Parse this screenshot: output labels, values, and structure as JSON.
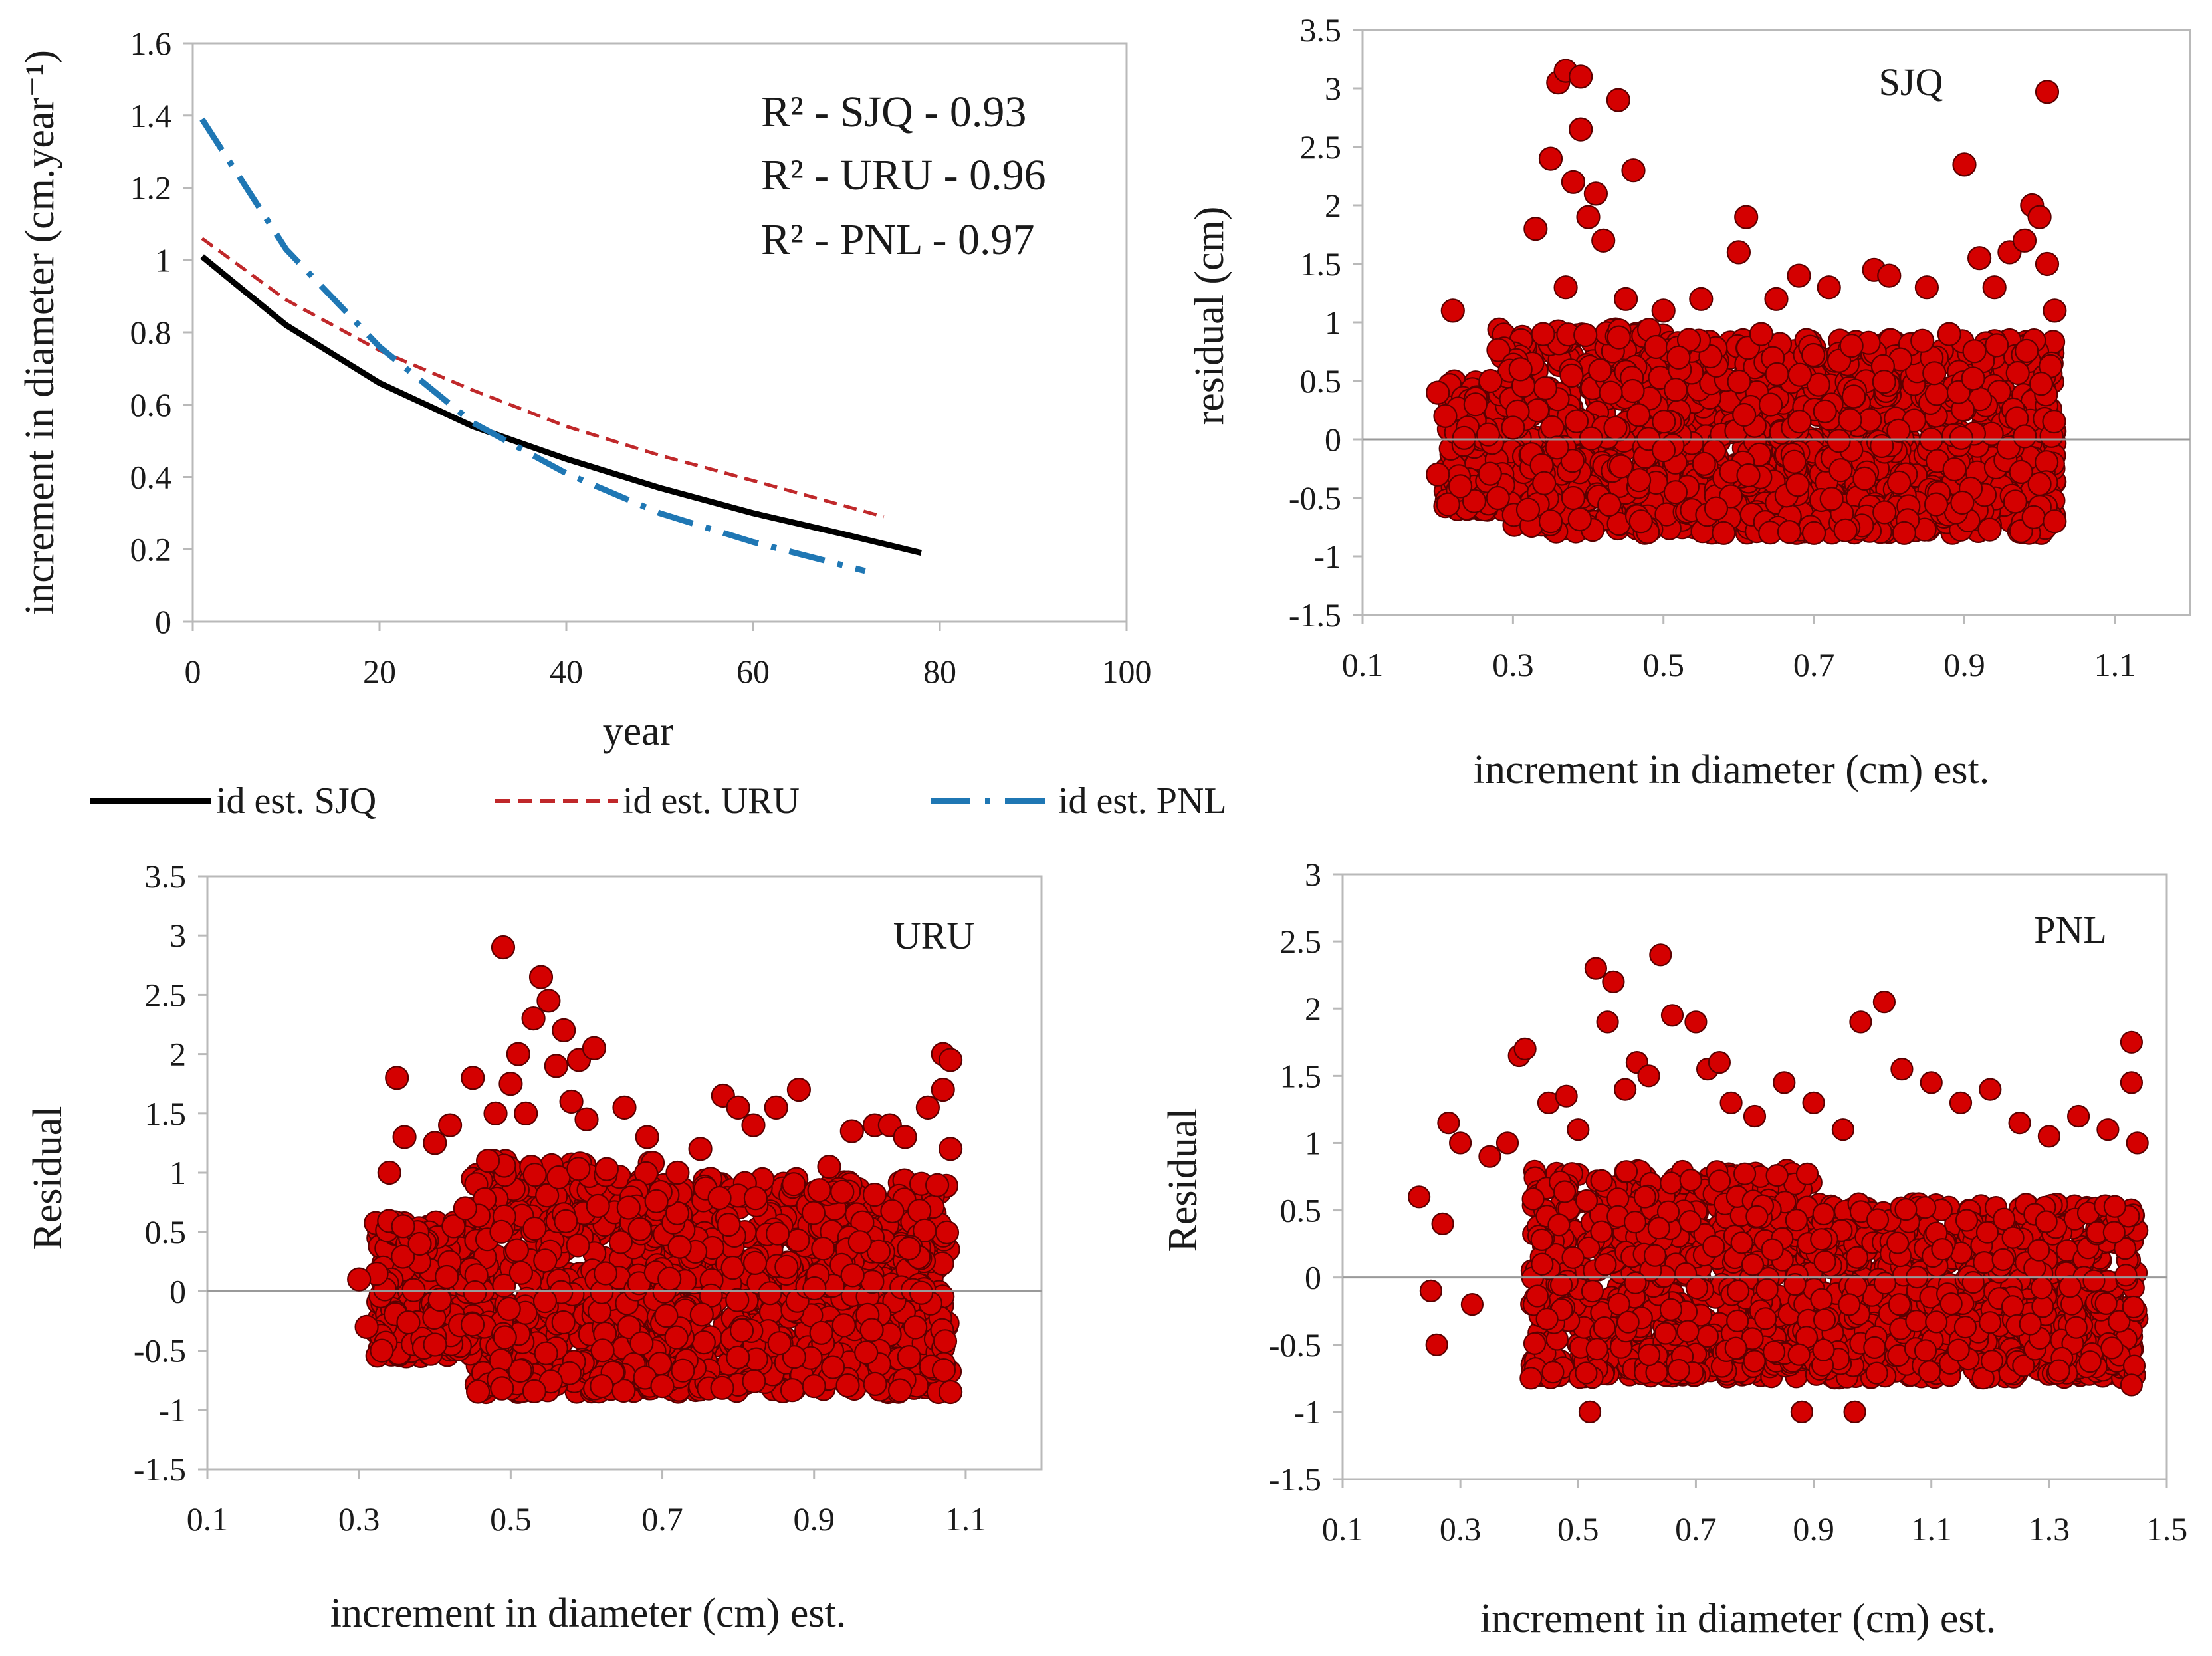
{
  "colors": {
    "sjq_line": "#000000",
    "uru_line": "#c0282a",
    "pnl_line": "#1f77b4",
    "residual_point_fill": "#d40000",
    "residual_point_edge": "#5a0000"
  },
  "chart_data": [
    {
      "id": "curves",
      "type": "line",
      "xlabel": "year",
      "ylabel": "increment in diameter (cm.year⁻¹)",
      "xlim": [
        0,
        100
      ],
      "ylim": [
        0,
        1.6
      ],
      "xticks": [
        "0",
        "20",
        "40",
        "60",
        "80",
        "100"
      ],
      "yticks": [
        "0",
        "0.2",
        "0.4",
        "0.6",
        "0.8",
        "1",
        "1.2",
        "1.4",
        "1.6"
      ],
      "annotations": [
        "R² - SJQ - 0.93",
        "R² - URU - 0.96",
        "R² - PNL - 0.97"
      ],
      "legend": {
        "position": "below",
        "entries": [
          "id est. SJQ",
          "id est. URU",
          "id est. PNL"
        ]
      },
      "grid": false,
      "series": [
        {
          "name": "id est. SJQ",
          "style": "solid",
          "x": [
            1,
            10,
            20,
            30,
            40,
            50,
            60,
            70,
            78
          ],
          "y": [
            1.01,
            0.82,
            0.66,
            0.54,
            0.45,
            0.37,
            0.3,
            0.24,
            0.19
          ]
        },
        {
          "name": "id est. URU",
          "style": "dashed",
          "x": [
            1,
            10,
            20,
            30,
            40,
            50,
            60,
            74
          ],
          "y": [
            1.06,
            0.89,
            0.75,
            0.64,
            0.54,
            0.46,
            0.39,
            0.29
          ]
        },
        {
          "name": "id est. PNL",
          "style": "dashdot",
          "x": [
            1,
            10,
            20,
            30,
            40,
            50,
            60,
            72
          ],
          "y": [
            1.39,
            1.03,
            0.76,
            0.55,
            0.41,
            0.3,
            0.22,
            0.14
          ]
        }
      ]
    },
    {
      "id": "sjq",
      "type": "scatter",
      "panel_label": "SJQ",
      "xlabel": "increment in diameter (cm) est.",
      "ylabel": "residual (cm)",
      "xlim": [
        0.1,
        1.2
      ],
      "ylim": [
        -1.5,
        3.5
      ],
      "xticks": [
        "0.1",
        "0.3",
        "0.5",
        "0.7",
        "0.9",
        "1.1"
      ],
      "yticks": [
        "-1.5",
        "-1",
        "-0.5",
        "0",
        "0.5",
        "1",
        "1.5",
        "2",
        "2.5",
        "3",
        "3.5"
      ],
      "grid": false,
      "points": [
        [
          0.2,
          0.4
        ],
        [
          0.2,
          -0.3
        ],
        [
          0.21,
          0.2
        ],
        [
          0.22,
          1.1
        ],
        [
          0.23,
          -0.4
        ],
        [
          0.25,
          0.3
        ],
        [
          0.27,
          0.5
        ],
        [
          0.28,
          -0.5
        ],
        [
          0.3,
          0.1
        ],
        [
          0.31,
          0.6
        ],
        [
          0.32,
          -0.6
        ],
        [
          0.33,
          1.8
        ],
        [
          0.34,
          0.9
        ],
        [
          0.35,
          2.4
        ],
        [
          0.35,
          -0.7
        ],
        [
          0.36,
          3.05
        ],
        [
          0.37,
          3.15
        ],
        [
          0.37,
          1.3
        ],
        [
          0.38,
          2.2
        ],
        [
          0.38,
          -0.5
        ],
        [
          0.39,
          3.1
        ],
        [
          0.39,
          2.65
        ],
        [
          0.4,
          1.9
        ],
        [
          0.41,
          2.1
        ],
        [
          0.42,
          1.7
        ],
        [
          0.43,
          0.4
        ],
        [
          0.44,
          2.9
        ],
        [
          0.45,
          1.2
        ],
        [
          0.46,
          2.3
        ],
        [
          0.47,
          -0.7
        ],
        [
          0.5,
          1.1
        ],
        [
          0.52,
          0.7
        ],
        [
          0.55,
          1.2
        ],
        [
          0.58,
          -0.8
        ],
        [
          0.6,
          1.6
        ],
        [
          0.61,
          1.9
        ],
        [
          0.63,
          0.9
        ],
        [
          0.65,
          1.2
        ],
        [
          0.68,
          1.4
        ],
        [
          0.7,
          -0.8
        ],
        [
          0.72,
          1.3
        ],
        [
          0.75,
          0.8
        ],
        [
          0.78,
          1.45
        ],
        [
          0.8,
          1.4
        ],
        [
          0.82,
          -0.8
        ],
        [
          0.85,
          1.3
        ],
        [
          0.88,
          0.9
        ],
        [
          0.9,
          2.35
        ],
        [
          0.92,
          1.55
        ],
        [
          0.94,
          1.3
        ],
        [
          0.96,
          1.6
        ],
        [
          0.98,
          1.7
        ],
        [
          0.99,
          2.0
        ],
        [
          1.0,
          1.9
        ],
        [
          1.01,
          2.97
        ],
        [
          1.01,
          1.5
        ],
        [
          1.02,
          -0.7
        ],
        [
          1.02,
          1.1
        ]
      ]
    },
    {
      "id": "uru",
      "type": "scatter",
      "panel_label": "URU",
      "xlabel": "increment in diameter (cm) est.",
      "ylabel": "Residual",
      "xlim": [
        0.1,
        1.2
      ],
      "ylim": [
        -1.5,
        3.5
      ],
      "xticks": [
        "0.1",
        "0.3",
        "0.5",
        "0.7",
        "0.9",
        "1.1"
      ],
      "yticks": [
        "-1.5",
        "-1",
        "-0.5",
        "0",
        "0.5",
        "1",
        "1.5",
        "2",
        "2.5",
        "3",
        "3.5"
      ],
      "grid": false,
      "points": [
        [
          0.3,
          0.1
        ],
        [
          0.31,
          -0.3
        ],
        [
          0.33,
          -0.5
        ],
        [
          0.34,
          1.0
        ],
        [
          0.35,
          1.8
        ],
        [
          0.36,
          1.3
        ],
        [
          0.38,
          0.4
        ],
        [
          0.4,
          1.25
        ],
        [
          0.42,
          1.4
        ],
        [
          0.44,
          0.7
        ],
        [
          0.45,
          1.8
        ],
        [
          0.47,
          1.1
        ],
        [
          0.48,
          1.5
        ],
        [
          0.49,
          2.9
        ],
        [
          0.5,
          1.75
        ],
        [
          0.51,
          2.0
        ],
        [
          0.52,
          1.5
        ],
        [
          0.53,
          2.3
        ],
        [
          0.54,
          2.65
        ],
        [
          0.55,
          2.45
        ],
        [
          0.56,
          1.9
        ],
        [
          0.57,
          2.2
        ],
        [
          0.58,
          1.6
        ],
        [
          0.59,
          1.95
        ],
        [
          0.6,
          1.45
        ],
        [
          0.61,
          2.05
        ],
        [
          0.62,
          -0.8
        ],
        [
          0.65,
          1.55
        ],
        [
          0.68,
          1.3
        ],
        [
          0.7,
          -0.8
        ],
        [
          0.72,
          1.0
        ],
        [
          0.75,
          1.2
        ],
        [
          0.78,
          1.65
        ],
        [
          0.8,
          1.55
        ],
        [
          0.82,
          1.4
        ],
        [
          0.85,
          1.55
        ],
        [
          0.88,
          1.7
        ],
        [
          0.9,
          -0.8
        ],
        [
          0.92,
          1.05
        ],
        [
          0.95,
          1.35
        ],
        [
          0.98,
          1.4
        ],
        [
          1.0,
          1.4
        ],
        [
          1.02,
          1.3
        ],
        [
          1.05,
          1.55
        ],
        [
          1.07,
          2.0
        ],
        [
          1.07,
          1.7
        ],
        [
          1.08,
          -0.85
        ],
        [
          1.08,
          1.95
        ],
        [
          1.08,
          1.2
        ]
      ]
    },
    {
      "id": "pnl",
      "type": "scatter",
      "panel_label": "PNL",
      "xlabel": "increment in diameter (cm) est.",
      "ylabel": "Residual",
      "xlim": [
        0.1,
        1.5
      ],
      "ylim": [
        -1.5,
        3
      ],
      "xticks": [
        "0.1",
        "0.3",
        "0.5",
        "0.7",
        "0.9",
        "1.1",
        "1.3",
        "1.5"
      ],
      "yticks": [
        "-1.5",
        "-1",
        "-0.5",
        "0",
        "0.5",
        "1",
        "1.5",
        "2",
        "2.5",
        "3"
      ],
      "grid": false,
      "points": [
        [
          0.23,
          0.6
        ],
        [
          0.25,
          -0.1
        ],
        [
          0.26,
          -0.5
        ],
        [
          0.27,
          0.4
        ],
        [
          0.28,
          1.15
        ],
        [
          0.3,
          1.0
        ],
        [
          0.32,
          -0.2
        ],
        [
          0.35,
          0.9
        ],
        [
          0.38,
          1.0
        ],
        [
          0.4,
          1.65
        ],
        [
          0.41,
          1.7
        ],
        [
          0.42,
          -0.75
        ],
        [
          0.45,
          1.3
        ],
        [
          0.48,
          1.35
        ],
        [
          0.5,
          1.1
        ],
        [
          0.52,
          -1.0
        ],
        [
          0.53,
          2.3
        ],
        [
          0.55,
          1.9
        ],
        [
          0.56,
          2.2
        ],
        [
          0.58,
          1.4
        ],
        [
          0.6,
          1.6
        ],
        [
          0.62,
          1.5
        ],
        [
          0.64,
          2.4
        ],
        [
          0.66,
          1.95
        ],
        [
          0.7,
          1.9
        ],
        [
          0.72,
          1.55
        ],
        [
          0.74,
          1.6
        ],
        [
          0.76,
          1.3
        ],
        [
          0.8,
          1.2
        ],
        [
          0.85,
          1.45
        ],
        [
          0.88,
          -1.0
        ],
        [
          0.9,
          1.3
        ],
        [
          0.95,
          1.1
        ],
        [
          0.97,
          -1.0
        ],
        [
          0.98,
          1.9
        ],
        [
          1.02,
          2.05
        ],
        [
          1.05,
          1.55
        ],
        [
          1.1,
          1.45
        ],
        [
          1.15,
          1.3
        ],
        [
          1.2,
          1.4
        ],
        [
          1.25,
          1.15
        ],
        [
          1.3,
          1.05
        ],
        [
          1.35,
          1.2
        ],
        [
          1.4,
          1.1
        ],
        [
          1.44,
          1.75
        ],
        [
          1.44,
          1.45
        ],
        [
          1.44,
          -0.8
        ],
        [
          1.45,
          1.0
        ]
      ]
    }
  ]
}
